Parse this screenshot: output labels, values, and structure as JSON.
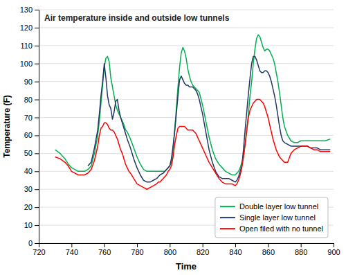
{
  "chart_data": {
    "type": "line",
    "title": "Air temperature inside and outside low tunnels",
    "x_label": "Time",
    "y_label": "Temperature (F)",
    "xlim": [
      720,
      900
    ],
    "ylim": [
      0,
      130
    ],
    "xticks": [
      720,
      740,
      760,
      780,
      800,
      820,
      840,
      860,
      880,
      900
    ],
    "yticks": [
      0,
      10,
      20,
      30,
      40,
      50,
      60,
      70,
      80,
      90,
      100,
      110,
      120,
      130
    ],
    "grid": true,
    "legend": "lower right",
    "series": [
      {
        "name": "Double layer low tunnel",
        "color": "#00b050",
        "x": [
          730,
          733,
          736,
          738,
          740,
          742,
          744,
          746,
          748,
          750,
          752,
          754,
          756,
          757,
          758,
          759,
          760,
          761,
          762,
          763,
          764,
          765,
          766,
          767,
          768,
          769,
          770,
          771,
          772,
          773,
          774,
          775,
          776,
          778,
          780,
          782,
          784,
          786,
          788,
          790,
          792,
          793,
          794,
          795,
          796,
          797,
          798,
          799,
          800,
          801,
          802,
          803,
          804,
          805,
          806,
          807,
          808,
          809,
          810,
          811,
          812,
          813,
          814,
          815,
          816,
          817,
          818,
          820,
          822,
          824,
          826,
          828,
          830,
          832,
          834,
          836,
          838,
          840,
          841,
          842,
          843,
          844,
          845,
          846,
          847,
          848,
          849,
          850,
          851,
          852,
          853,
          854,
          855,
          856,
          857,
          858,
          859,
          860,
          861,
          862,
          863,
          864,
          865,
          866,
          867,
          868,
          869,
          870,
          872,
          874,
          876,
          878,
          880,
          882,
          884,
          886,
          888,
          890,
          892,
          895,
          898
        ],
        "values": [
          52,
          50,
          47,
          44,
          42,
          41,
          40,
          40,
          40,
          41,
          43,
          50,
          60,
          68,
          78,
          88,
          98,
          103,
          104,
          101,
          92,
          87,
          82,
          77,
          74,
          72,
          70,
          68,
          66,
          63,
          62,
          60,
          58,
          53,
          48,
          44,
          41,
          40,
          40,
          40,
          40,
          40,
          40,
          40,
          40,
          40,
          41,
          42,
          43,
          45,
          52,
          63,
          75,
          87,
          98,
          106,
          109,
          107,
          103,
          97,
          93,
          90,
          88,
          87,
          86,
          85,
          84,
          77,
          68,
          59,
          52,
          47,
          44,
          42,
          40,
          39,
          38,
          38,
          39,
          40,
          42,
          45,
          48,
          55,
          62,
          72,
          82,
          90,
          100,
          108,
          114,
          116,
          115,
          112,
          109,
          107,
          108,
          108,
          107,
          105,
          103,
          100,
          95,
          90,
          84,
          77,
          70,
          65,
          60,
          57,
          56,
          56,
          57,
          57,
          57,
          57,
          57,
          57,
          57,
          57,
          58
        ]
      },
      {
        "name": "Single layer low tunnel",
        "color": "#1f3864",
        "x": [
          750,
          752,
          754,
          756,
          757,
          758,
          759,
          760,
          761,
          762,
          763,
          764,
          765,
          766,
          767,
          768,
          769,
          770,
          771,
          772,
          774,
          776,
          778,
          780,
          782,
          784,
          786,
          788,
          790,
          792,
          794,
          796,
          798,
          800,
          801,
          802,
          803,
          804,
          805,
          806,
          807,
          808,
          809,
          810,
          811,
          812,
          813,
          814,
          815,
          816,
          817,
          818,
          820,
          822,
          824,
          826,
          828,
          830,
          832,
          834,
          836,
          838,
          840,
          841,
          842,
          843,
          844,
          845,
          846,
          847,
          848,
          849,
          850,
          851,
          852,
          853,
          854,
          855,
          856,
          857,
          858,
          859,
          860,
          861,
          862,
          863,
          864,
          865,
          866,
          867,
          868,
          869,
          870,
          872,
          874,
          876,
          878,
          880,
          882,
          884,
          886,
          888,
          890,
          892,
          895,
          898
        ],
        "values": [
          43,
          45,
          53,
          63,
          72,
          82,
          90,
          100,
          92,
          82,
          77,
          75,
          69,
          73,
          79,
          80,
          74,
          70,
          67,
          64,
          58,
          53,
          47,
          42,
          38,
          35,
          34,
          34,
          35,
          36,
          38,
          39,
          41,
          43,
          47,
          54,
          62,
          72,
          82,
          91,
          93,
          91,
          89,
          88,
          88,
          87,
          87,
          87,
          86,
          85,
          83,
          80,
          72,
          62,
          52,
          45,
          40,
          37,
          36,
          36,
          36,
          35,
          34,
          35,
          37,
          40,
          43,
          52,
          63,
          73,
          83,
          92,
          100,
          104,
          104,
          102,
          99,
          96,
          95,
          95,
          96,
          96,
          95,
          93,
          90,
          86,
          82,
          77,
          71,
          65,
          60,
          57,
          56,
          55,
          54,
          54,
          54,
          54,
          54,
          54,
          53,
          53,
          53,
          52,
          52,
          52
        ]
      },
      {
        "name": "Open filed with no tunnel",
        "color": "#ff0000",
        "x": [
          730,
          733,
          736,
          738,
          740,
          742,
          744,
          746,
          748,
          750,
          752,
          754,
          756,
          757,
          758,
          759,
          760,
          761,
          762,
          763,
          764,
          765,
          766,
          767,
          768,
          769,
          770,
          771,
          772,
          773,
          774,
          775,
          776,
          778,
          780,
          782,
          784,
          786,
          788,
          790,
          792,
          793,
          794,
          795,
          796,
          797,
          798,
          799,
          800,
          801,
          802,
          803,
          804,
          805,
          806,
          807,
          808,
          809,
          810,
          811,
          812,
          813,
          814,
          815,
          816,
          818,
          820,
          822,
          824,
          826,
          828,
          830,
          832,
          834,
          836,
          838,
          840,
          841,
          842,
          843,
          844,
          845,
          846,
          847,
          848,
          849,
          850,
          851,
          852,
          853,
          854,
          855,
          856,
          857,
          858,
          859,
          860,
          861,
          862,
          863,
          864,
          865,
          866,
          867,
          868,
          869,
          870,
          872,
          874,
          876,
          878,
          880,
          882,
          884,
          886,
          888,
          890,
          892,
          895,
          898
        ],
        "values": [
          48,
          47,
          45,
          43,
          40,
          39,
          38,
          38,
          38,
          39,
          41,
          46,
          54,
          60,
          64,
          65,
          67,
          67,
          66,
          64,
          63,
          63,
          62,
          60,
          58,
          55,
          52,
          50,
          47,
          44,
          42,
          40,
          39,
          36,
          33,
          32,
          31,
          30,
          31,
          32,
          33,
          34,
          34,
          35,
          36,
          37,
          38,
          40,
          41,
          43,
          48,
          55,
          60,
          64,
          65,
          65,
          65,
          65,
          64,
          63,
          63,
          63,
          63,
          62,
          61,
          57,
          53,
          49,
          45,
          42,
          39,
          36,
          34,
          33,
          33,
          33,
          32,
          33,
          35,
          38,
          42,
          48,
          55,
          63,
          70,
          74,
          76,
          78,
          79,
          80,
          80,
          80,
          79,
          78,
          76,
          73,
          70,
          66,
          62,
          58,
          55,
          52,
          50,
          48,
          47,
          46,
          45,
          45,
          50,
          52,
          53,
          54,
          54,
          54,
          53,
          52,
          52,
          51,
          51,
          51
        ]
      }
    ]
  }
}
